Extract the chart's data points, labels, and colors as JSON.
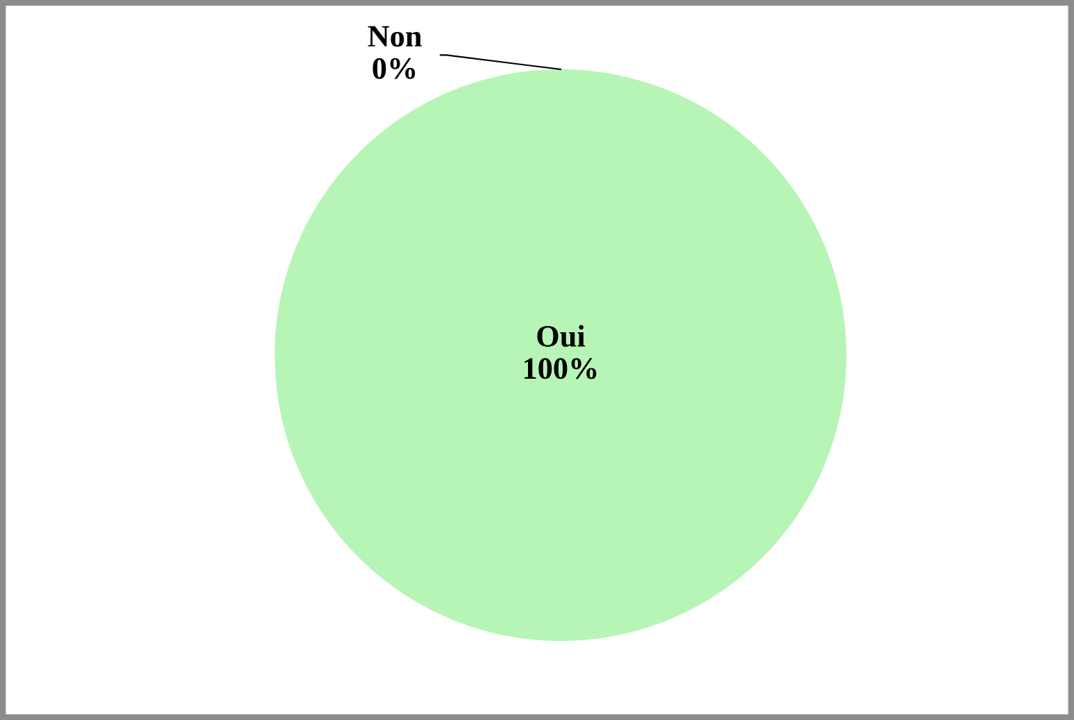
{
  "chart_data": {
    "type": "pie",
    "categories": [
      "Oui",
      "Non"
    ],
    "values": [
      100,
      0
    ],
    "colors": [
      "#b6f5b6",
      "#3a6fc4"
    ],
    "value_labels": [
      "100%",
      "0%"
    ],
    "legend": false
  }
}
